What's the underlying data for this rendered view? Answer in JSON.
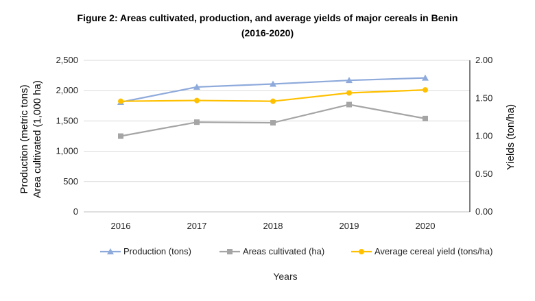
{
  "chart_data": {
    "type": "line",
    "title_line1": "Figure 2: Areas cultivated, production, and average yields of major cereals in Benin",
    "title_line2": "(2016-2020)",
    "categories": [
      "2016",
      "2017",
      "2018",
      "2019",
      "2020"
    ],
    "xlabel": "Years",
    "ylabel_left_line1": "Production (metric tons)",
    "ylabel_left_line2": "Area cultivated (1,000 ha)",
    "ylabel_right": "Yields (ton/ha)",
    "ylim_left": [
      0,
      2500
    ],
    "ylim_right": [
      0,
      2
    ],
    "left_ticks": [
      "0",
      "500",
      "1,000",
      "1,500",
      "2,000",
      "2,500"
    ],
    "right_ticks": [
      "0.00",
      "0.50",
      "1.00",
      "1.50",
      "2.00"
    ],
    "series": [
      {
        "name": "Production (tons)",
        "axis": "left",
        "marker": "triangle",
        "color": "#8eaadb",
        "values": [
          1810,
          2060,
          2110,
          2170,
          2210
        ]
      },
      {
        "name": "Areas cultivated (ha)",
        "axis": "left",
        "marker": "square",
        "color": "#a5a5a5",
        "values": [
          1250,
          1480,
          1470,
          1770,
          1540
        ]
      },
      {
        "name": "Average cereal yield (tons/ha)",
        "axis": "right",
        "marker": "circle",
        "color": "#ffc000",
        "values": [
          1.46,
          1.47,
          1.46,
          1.57,
          1.61
        ]
      }
    ]
  }
}
